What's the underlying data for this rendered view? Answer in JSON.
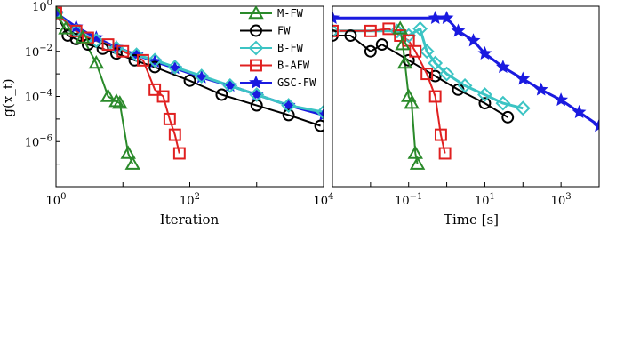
{
  "ytick_labels": [
    "10^0",
    "10^-2",
    "10^-4",
    "10^-6"
  ],
  "legend": [
    {
      "label": "M-FW",
      "color": "#2a8a2a",
      "marker": "triangle"
    },
    {
      "label": "FW",
      "color": "#000000",
      "marker": "circle"
    },
    {
      "label": "B-FW",
      "color": "#3cc4c4",
      "marker": "diamond"
    },
    {
      "label": "B-AFW",
      "color": "#e02020",
      "marker": "square"
    },
    {
      "label": "GSC-FW",
      "color": "#1a1ae0",
      "marker": "star"
    }
  ],
  "chart_data": [
    {
      "type": "line",
      "xlabel": "Iteration",
      "ylabel": "g(x_t)",
      "xscale": "log",
      "yscale": "log",
      "xlim": [
        1,
        10000
      ],
      "ylim": [
        1e-08,
        1
      ],
      "xtick_labels": [
        "10^0",
        "10^2",
        "10^4"
      ],
      "series": [
        {
          "name": "M-FW",
          "x": [
            1,
            1.4,
            2.5,
            4,
            6,
            8,
            9,
            12,
            14
          ],
          "y": [
            0.5,
            0.1,
            0.04,
            0.003,
            0.0001,
            6e-05,
            5e-05,
            3e-07,
            1e-07
          ]
        },
        {
          "name": "FW",
          "x": [
            1,
            1.5,
            2,
            3,
            5,
            8,
            15,
            30,
            100,
            300,
            1000,
            3000,
            9000
          ],
          "y": [
            0.5,
            0.05,
            0.035,
            0.02,
            0.013,
            0.008,
            0.004,
            0.002,
            0.0005,
            0.00012,
            4e-05,
            1.5e-05,
            5e-06
          ]
        },
        {
          "name": "B-FW",
          "x": [
            1,
            2,
            4,
            8,
            16,
            30,
            60,
            150,
            400,
            1000,
            3000,
            10000
          ],
          "y": [
            0.5,
            0.08,
            0.03,
            0.014,
            0.007,
            0.004,
            0.002,
            0.0008,
            0.0003,
            0.00012,
            4e-05,
            2e-05
          ]
        },
        {
          "name": "B-AFW",
          "x": [
            1,
            2,
            3,
            6,
            10,
            20,
            30,
            40,
            50,
            60,
            70
          ],
          "y": [
            0.5,
            0.08,
            0.04,
            0.02,
            0.01,
            0.004,
            0.0002,
            0.0001,
            1e-05,
            2e-06,
            3e-07
          ]
        },
        {
          "name": "GSC-FW",
          "x": [
            1,
            2,
            4,
            8,
            16,
            30,
            60,
            150,
            400,
            1000,
            3000,
            10000
          ],
          "y": [
            0.5,
            0.12,
            0.04,
            0.015,
            0.007,
            0.0035,
            0.0018,
            0.0007,
            0.0003,
            0.00012,
            4e-05,
            1.5e-05
          ]
        }
      ]
    },
    {
      "type": "line",
      "xlabel": "Time [s]",
      "xscale": "log",
      "yscale": "log",
      "xlim": [
        0.001,
        10000
      ],
      "ylim": [
        1e-08,
        1
      ],
      "xtick_labels": [
        "10^-1",
        "10^1",
        "10^3"
      ],
      "series": [
        {
          "name": "M-FW",
          "x": [
            0.06,
            0.07,
            0.08,
            0.1,
            0.12,
            0.15,
            0.17
          ],
          "y": [
            0.1,
            0.02,
            0.003,
            0.0001,
            5e-05,
            3e-07,
            1e-07
          ]
        },
        {
          "name": "FW",
          "x": [
            0.001,
            0.003,
            0.01,
            0.02,
            0.1,
            0.5,
            2,
            10,
            40
          ],
          "y": [
            0.05,
            0.05,
            0.01,
            0.02,
            0.004,
            0.0008,
            0.0002,
            5e-05,
            1.2e-05
          ]
        },
        {
          "name": "B-FW",
          "x": [
            0.001,
            0.05,
            0.1,
            0.2,
            0.3,
            0.5,
            1,
            3,
            10,
            30,
            100
          ],
          "y": [
            0.08,
            0.08,
            0.05,
            0.1,
            0.01,
            0.003,
            0.001,
            0.0003,
            0.00012,
            5e-05,
            3e-05
          ]
        },
        {
          "name": "B-AFW",
          "x": [
            0.001,
            0.01,
            0.03,
            0.06,
            0.1,
            0.15,
            0.3,
            0.5,
            0.7,
            0.9
          ],
          "y": [
            0.08,
            0.08,
            0.1,
            0.05,
            0.03,
            0.01,
            0.001,
            0.0001,
            2e-06,
            3e-07
          ]
        },
        {
          "name": "GSC-FW",
          "x": [
            0.001,
            0.5,
            1,
            2,
            5,
            10,
            30,
            100,
            300,
            1000,
            3000,
            10000
          ],
          "y": [
            0.3,
            0.3,
            0.3,
            0.08,
            0.03,
            0.008,
            0.002,
            0.0006,
            0.0002,
            7e-05,
            2e-05,
            5e-06
          ]
        }
      ]
    }
  ]
}
